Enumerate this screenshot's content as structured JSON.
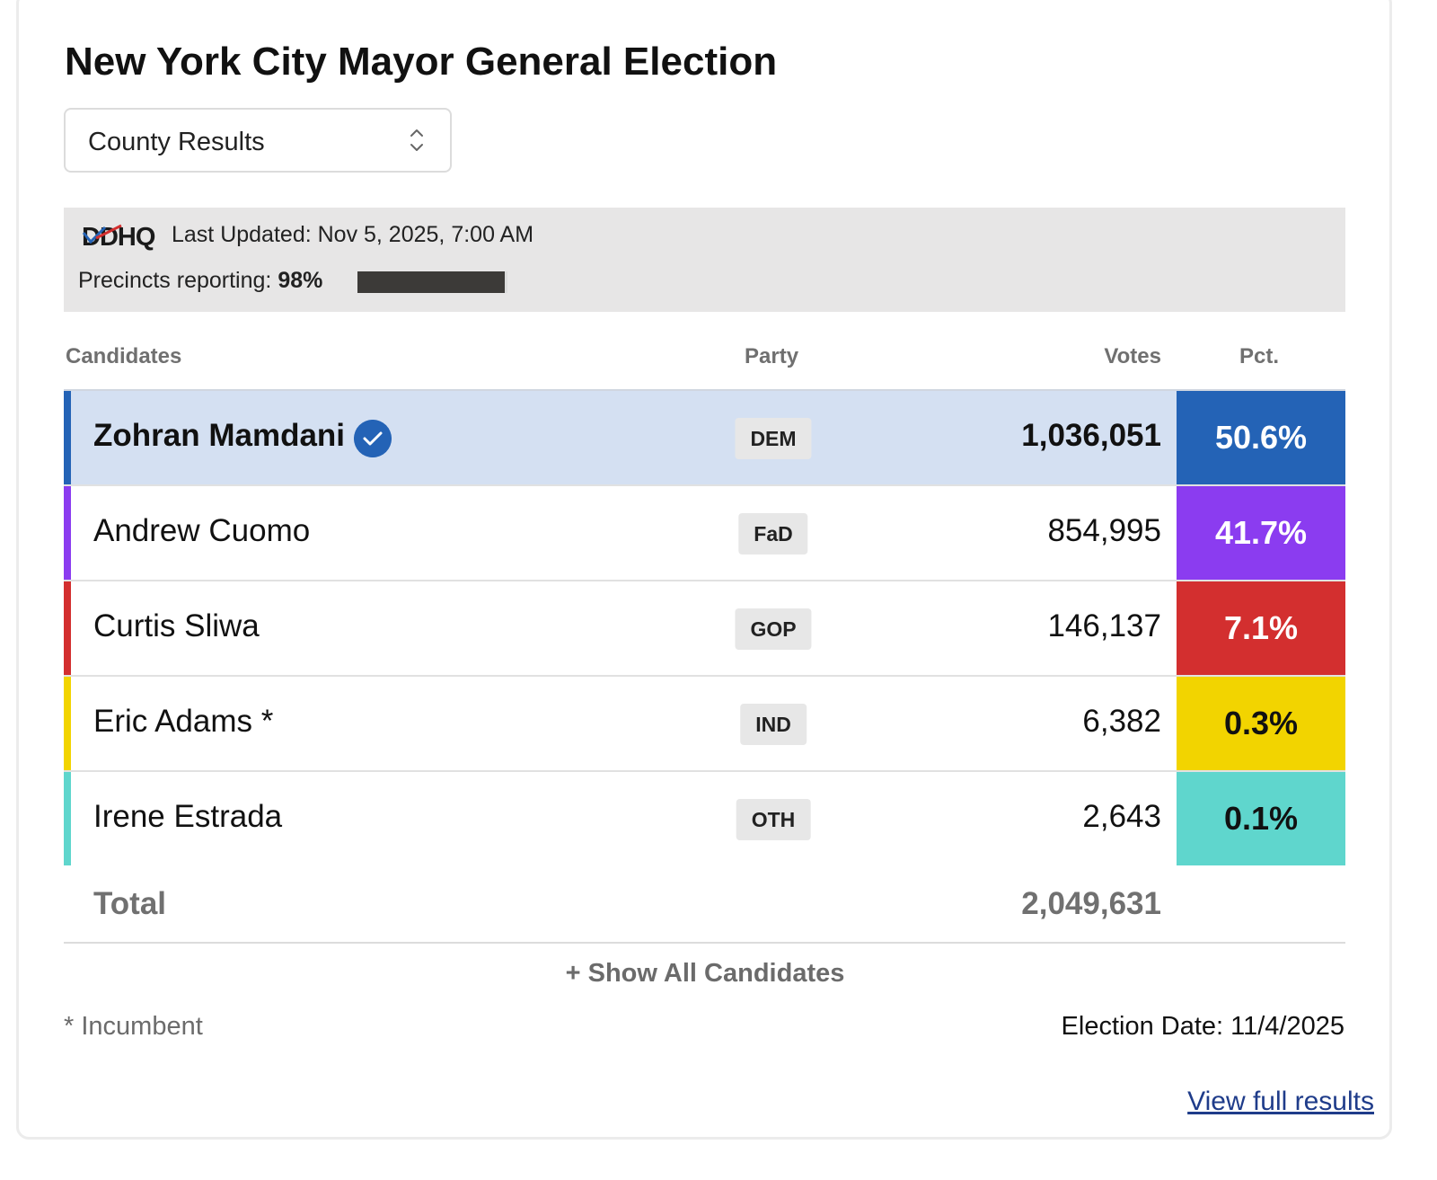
{
  "title": "New York City Mayor General Election",
  "view_select": {
    "selected": "County Results"
  },
  "source": {
    "logo_text": "DDHQ",
    "last_updated": "Last Updated: Nov 5, 2025, 7:00 AM",
    "precincts_label": "Precincts reporting:",
    "precincts_value": "98%",
    "precincts_fraction": 0.98
  },
  "table": {
    "headers": {
      "candidates": "Candidates",
      "party": "Party",
      "votes": "Votes",
      "pct": "Pct."
    },
    "rows": [
      {
        "name": "Zohran Mamdani",
        "party": "DEM",
        "votes": "1,036,051",
        "pct": "50.6%",
        "color": "#2463b6",
        "text_color": "#ffffff",
        "winner": true
      },
      {
        "name": "Andrew Cuomo",
        "party": "FaD",
        "votes": "854,995",
        "pct": "41.7%",
        "color": "#8b3cf0",
        "text_color": "#ffffff",
        "winner": false
      },
      {
        "name": "Curtis Sliwa",
        "party": "GOP",
        "votes": "146,137",
        "pct": "7.1%",
        "color": "#d32f2f",
        "text_color": "#ffffff",
        "winner": false
      },
      {
        "name": "Eric Adams *",
        "party": "IND",
        "votes": "6,382",
        "pct": "0.3%",
        "color": "#f2d400",
        "text_color": "#111111",
        "winner": false
      },
      {
        "name": "Irene Estrada",
        "party": "OTH",
        "votes": "2,643",
        "pct": "0.1%",
        "color": "#5fd6cd",
        "text_color": "#111111",
        "winner": false
      }
    ],
    "total_label": "Total",
    "total_votes": "2,049,631"
  },
  "show_all": "+ Show All Candidates",
  "footnote": "* Incumbent",
  "election_date": "Election Date: 11/4/2025",
  "full_results_link": "View full results"
}
